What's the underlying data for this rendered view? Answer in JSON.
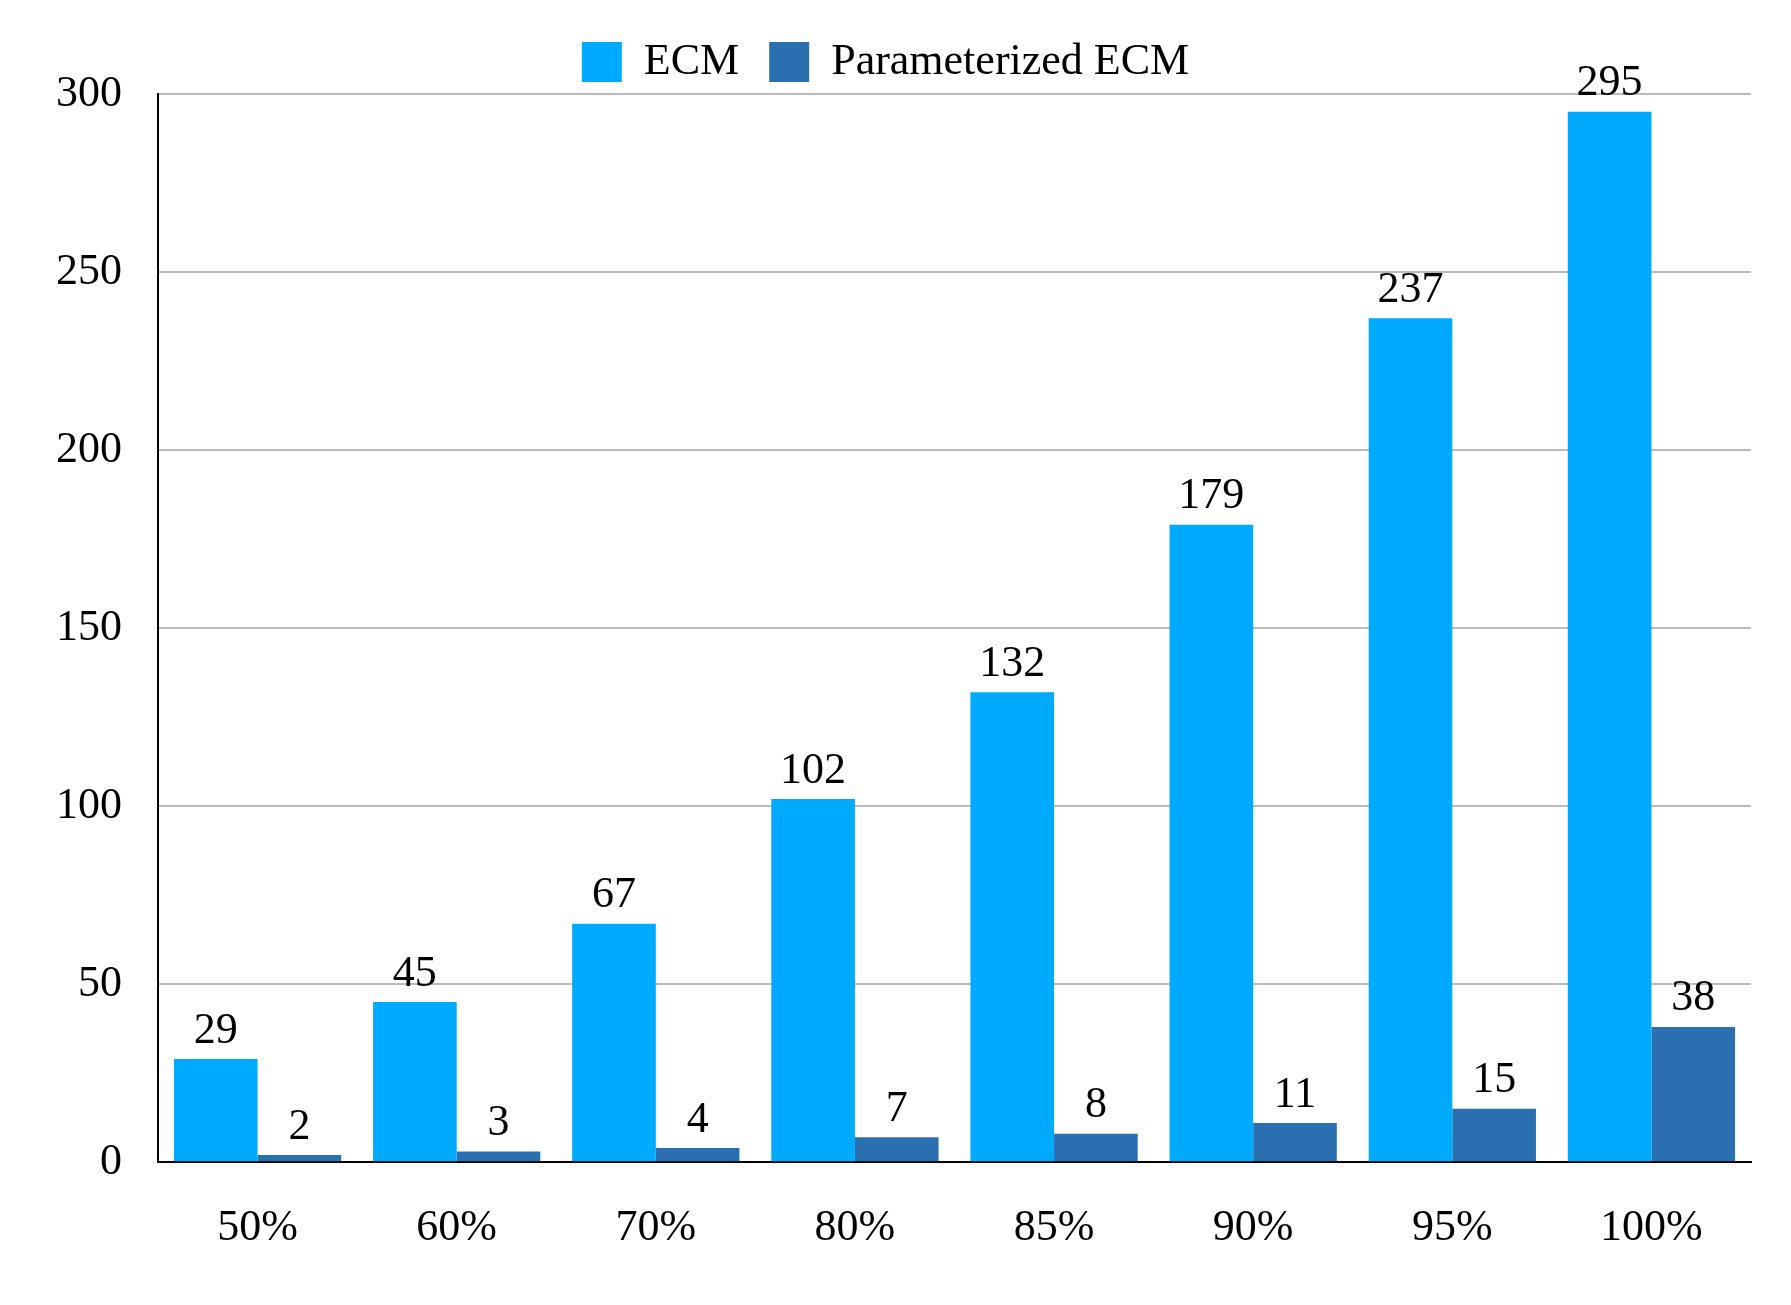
{
  "chart_data": {
    "type": "bar",
    "categories": [
      "50%",
      "60%",
      "70%",
      "80%",
      "85%",
      "90%",
      "95%",
      "100%"
    ],
    "series": [
      {
        "name": "ECM",
        "color": "#00aaff",
        "values": [
          29,
          45,
          67,
          102,
          132,
          179,
          237,
          295
        ]
      },
      {
        "name": "Parameterized ECM",
        "color": "#2a70b0",
        "values": [
          2,
          3,
          4,
          7,
          8,
          11,
          15,
          38
        ]
      }
    ],
    "ylim": [
      0,
      300
    ],
    "yticks": [
      0,
      50,
      100,
      150,
      200,
      250,
      300
    ],
    "grid": "y",
    "legend": "top",
    "data_labels": true
  }
}
